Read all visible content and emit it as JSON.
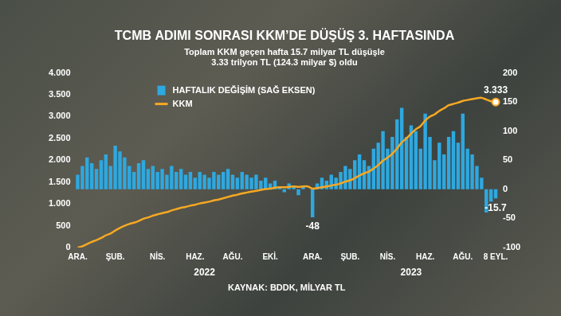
{
  "chart_data": {
    "type": "bar",
    "title": "TCMB ADIMI SONRASI KKM’DE DÜŞÜŞ 3. HAFTASINDA",
    "subtitle": [
      "Toplam KKM geçen hafta 15.7 milyar TL düşüşle",
      "3.33 trilyon TL (124.3 milyar $) oldu"
    ],
    "source": "KAYNAK: BDDK, MİLYAR TL",
    "categories": [
      "ARA.",
      null,
      null,
      null,
      null,
      null,
      null,
      null,
      "ŞUB.",
      null,
      null,
      null,
      null,
      null,
      null,
      null,
      null,
      "NİS.",
      null,
      null,
      null,
      null,
      null,
      null,
      null,
      "HAZ.",
      null,
      null,
      null,
      null,
      null,
      null,
      null,
      "AĞU.",
      null,
      null,
      null,
      null,
      null,
      null,
      null,
      "EKİ.",
      null,
      null,
      null,
      null,
      null,
      null,
      null,
      null,
      "ARA.",
      null,
      null,
      null,
      null,
      null,
      null,
      null,
      "ŞUB.",
      null,
      null,
      null,
      null,
      null,
      null,
      null,
      "NİS.",
      null,
      null,
      null,
      null,
      null,
      null,
      null,
      "HAZ.",
      null,
      null,
      null,
      null,
      null,
      null,
      null,
      "AĞU.",
      null,
      null,
      null,
      null,
      null,
      null,
      "8 EYL."
    ],
    "x_group_labels": [
      {
        "text": "2022",
        "index": 27
      },
      {
        "text": "2023",
        "index": 71
      }
    ],
    "series": [
      {
        "name": "HAFTALIK DEĞİŞİM (SAĞ EKSEN)",
        "type": "bar",
        "axis": "y2",
        "color": "#2ea8e0",
        "values": [
          25,
          40,
          55,
          45,
          35,
          50,
          60,
          40,
          75,
          65,
          55,
          40,
          30,
          45,
          50,
          35,
          40,
          30,
          35,
          25,
          40,
          30,
          35,
          25,
          30,
          20,
          30,
          25,
          20,
          30,
          25,
          30,
          35,
          25,
          20,
          30,
          25,
          20,
          25,
          15,
          20,
          10,
          15,
          5,
          -5,
          10,
          5,
          -10,
          5,
          0,
          -48,
          10,
          20,
          15,
          25,
          20,
          30,
          40,
          35,
          50,
          60,
          50,
          40,
          70,
          80,
          100,
          70,
          90,
          120,
          140,
          90,
          110,
          100,
          70,
          130,
          90,
          50,
          80,
          60,
          90,
          100,
          80,
          130,
          70,
          60,
          40,
          20,
          -40,
          -21,
          -15.7
        ]
      },
      {
        "name": "KKM",
        "type": "line",
        "color": "#f6a823",
        "values": [
          0,
          30,
          80,
          130,
          170,
          220,
          280,
          320,
          390,
          450,
          500,
          540,
          570,
          610,
          660,
          690,
          730,
          760,
          790,
          810,
          850,
          880,
          910,
          930,
          960,
          980,
          1010,
          1030,
          1050,
          1080,
          1100,
          1130,
          1160,
          1190,
          1210,
          1240,
          1260,
          1280,
          1300,
          1320,
          1340,
          1350,
          1370,
          1380,
          1380,
          1390,
          1400,
          1390,
          1400,
          1400,
          1350,
          1360,
          1380,
          1400,
          1420,
          1440,
          1470,
          1510,
          1540,
          1590,
          1650,
          1700,
          1740,
          1810,
          1890,
          1990,
          2060,
          2150,
          2270,
          2410,
          2500,
          2610,
          2710,
          2780,
          2910,
          3000,
          3050,
          3130,
          3190,
          3260,
          3290,
          3320,
          3360,
          3380,
          3400,
          3420,
          3430,
          3390,
          3349,
          3333
        ]
      }
    ],
    "annotations": [
      {
        "text": "-48",
        "series": 0,
        "index": 50
      },
      {
        "text": "-15.7",
        "series": 0,
        "index": 89
      },
      {
        "text": "3.333",
        "series": 1,
        "index": 89
      }
    ],
    "ylim": [
      0,
      4000
    ],
    "yticks": [
      0,
      500,
      {
        "value": 1000,
        "label": "1.000"
      },
      {
        "value": 1500,
        "label": "1.500"
      },
      {
        "value": 2000,
        "label": "2.000"
      },
      {
        "value": 2500,
        "label": "2.500"
      },
      {
        "value": 3000,
        "label": "3.000"
      },
      {
        "value": 3500,
        "label": "3.500"
      },
      {
        "value": 4000,
        "label": "4.000"
      }
    ],
    "y2lim": [
      -100,
      200
    ],
    "y2ticks": [
      -100,
      -50,
      0,
      50,
      100,
      150,
      200
    ],
    "grid": false,
    "legend": "upper left"
  }
}
